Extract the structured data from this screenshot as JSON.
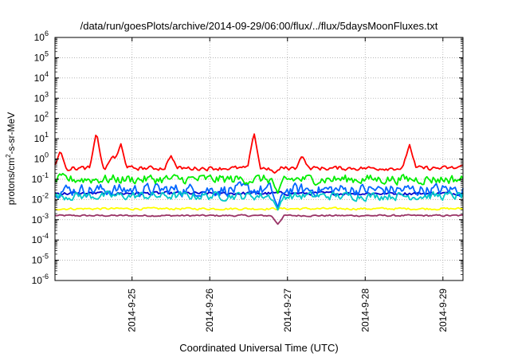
{
  "chart_data": {
    "type": "line",
    "title": "/data/run/goesPlots/archive/2014-09-29/06:00/flux/../flux/5daysMoonFluxes.txt",
    "xlabel": "Coordinated Universal Time (UTC)",
    "ylabel": {
      "before": "protons/cm",
      "superscript": "2",
      "after": "-s-sr-MeV"
    },
    "yscale": "log",
    "ylim": [
      "1e-6",
      "1e6"
    ],
    "yticks": [
      {
        "base": "10",
        "exp": "-6",
        "value": 1e-06
      },
      {
        "base": "10",
        "exp": "-5",
        "value": 1e-05
      },
      {
        "base": "10",
        "exp": "-4",
        "value": 0.0001
      },
      {
        "base": "10",
        "exp": "-3",
        "value": 0.001
      },
      {
        "base": "10",
        "exp": "-2",
        "value": 0.01
      },
      {
        "base": "10",
        "exp": "-1",
        "value": 0.1
      },
      {
        "base": "10",
        "exp": "0",
        "value": 1
      },
      {
        "base": "10",
        "exp": "1",
        "value": 10
      },
      {
        "base": "10",
        "exp": "2",
        "value": 100
      },
      {
        "base": "10",
        "exp": "3",
        "value": 1000
      },
      {
        "base": "10",
        "exp": "4",
        "value": 10000
      },
      {
        "base": "10",
        "exp": "5",
        "value": 100000
      },
      {
        "base": "10",
        "exp": "6",
        "value": 1000000
      }
    ],
    "xlim": [
      "2014-09-24 00:12",
      "2014-09-29 06:12"
    ],
    "xticks": [
      {
        "label": "2014-9-25",
        "date": "2014-09-25 00:00"
      },
      {
        "label": "2014-9-26",
        "date": "2014-09-26 00:00"
      },
      {
        "label": "2014-9-27",
        "date": "2014-09-27 00:00"
      },
      {
        "label": "2014-9-28",
        "date": "2014-09-28 00:00"
      },
      {
        "label": "2014-9-29",
        "date": "2014-09-29 00:00"
      }
    ],
    "grid": true,
    "legend": "none",
    "series": [
      {
        "color": "#ff0000",
        "typical": 0.35,
        "noise": 0.15,
        "spikes": [
          {
            "x": "2014-09-24 01:50",
            "y": 2.5
          },
          {
            "x": "2014-09-24 13:00",
            "y": 22
          },
          {
            "x": "2014-09-24 18:00",
            "y": 1.5
          },
          {
            "x": "2014-09-24 20:30",
            "y": 6
          },
          {
            "x": "2014-09-25 12:00",
            "y": 1.5
          },
          {
            "x": "2014-09-26 13:40",
            "y": 20
          },
          {
            "x": "2014-09-26 20:00",
            "y": 0.2
          },
          {
            "x": "2014-09-27 04:30",
            "y": 1.5
          },
          {
            "x": "2014-09-28 13:40",
            "y": 5.5
          },
          {
            "x": "2014-09-29 06:00",
            "y": 0.5
          }
        ]
      },
      {
        "color": "#00ee00",
        "typical": 0.1,
        "noise": 0.35,
        "dips": [
          {
            "x": "2014-09-26 21:00",
            "y": 0.02
          }
        ]
      },
      {
        "color": "#00c8c8",
        "typical": 0.015,
        "noise": 0.3,
        "dips": [
          {
            "x": "2014-09-26 21:00",
            "y": 0.003
          }
        ]
      },
      {
        "color": "#0066ff",
        "typical": 0.03,
        "noise": 0.45,
        "dips": [
          {
            "x": "2014-09-26 21:00",
            "y": 0.004
          }
        ]
      },
      {
        "color": "#0000cc",
        "typical": 0.02,
        "noise": 0.12
      },
      {
        "color": "#ffff00",
        "typical": 0.0035,
        "noise": 0.08
      },
      {
        "color": "#993366",
        "typical": 0.0016,
        "noise": 0.06,
        "dips": [
          {
            "x": "2014-09-26 21:00",
            "y": 0.0006
          }
        ]
      }
    ]
  }
}
